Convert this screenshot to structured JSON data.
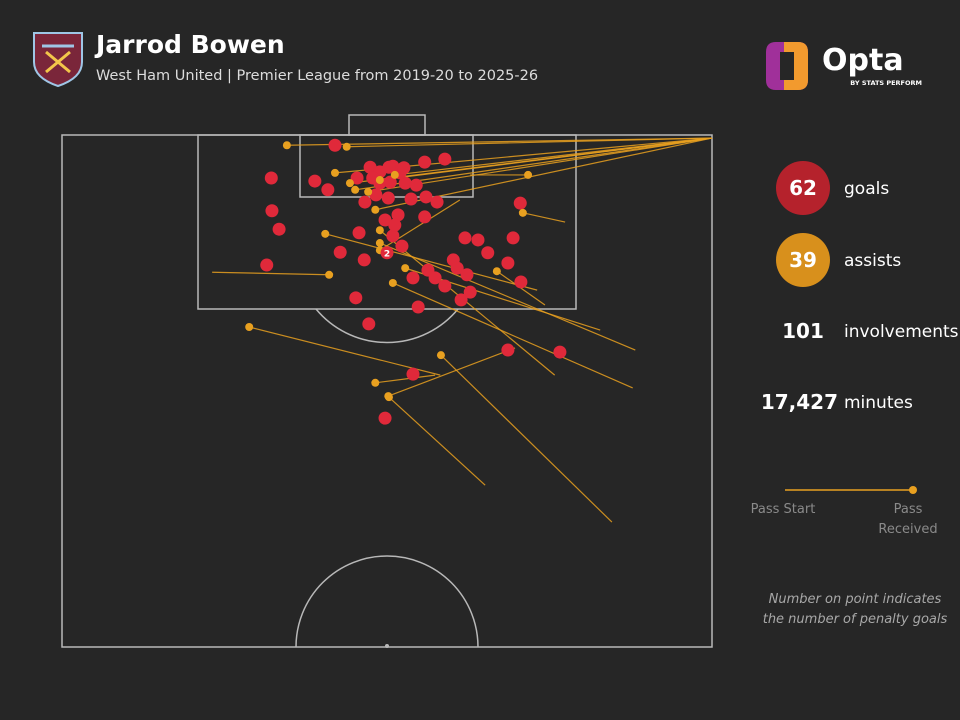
{
  "chart_data": {
    "type": "pitch-map",
    "title": "Jarrod Bowen",
    "subtitle": "West Ham United | Premier League from 2019-20 to 2025-26",
    "brand": "Opta",
    "brand_sub": "BY STATS PERFORM",
    "xlim": [
      0,
      100
    ],
    "ylim": [
      0,
      100
    ],
    "series": [
      {
        "name": "goals",
        "color": "#e0293a",
        "x": [
          42.0,
          32.2,
          38.9,
          40.9,
          32.3,
          33.4,
          31.5,
          47.4,
          50.9,
          55.8,
          58.9,
          45.4,
          48.9,
          52.8,
          54.5,
          50.2,
          53.7,
          56.0,
          57.7,
          46.6,
          51.7,
          49.7,
          55.8,
          70.5,
          45.7,
          42.8,
          46.5,
          50.9,
          52.3,
          62.0,
          64.0,
          69.4,
          65.5,
          68.6,
          60.2,
          60.8,
          56.3,
          54.0,
          62.3,
          58.9,
          62.8,
          61.4,
          70.6,
          45.2,
          54.8,
          47.2,
          68.6,
          76.6,
          54.0,
          49.7,
          50.5,
          52.0,
          48.9,
          48.3,
          51.2,
          57.4,
          50.3,
          47.8,
          52.6
        ],
        "values": [
          2.0,
          8.4,
          9.0,
          10.7,
          14.8,
          18.4,
          25.4,
          6.3,
          6.1,
          5.3,
          4.7,
          8.4,
          9.4,
          9.4,
          9.8,
          12.3,
          12.5,
          12.1,
          13.1,
          13.1,
          15.6,
          16.6,
          16.0,
          13.3,
          19.1,
          22.9,
          24.4,
          19.7,
          21.7,
          20.1,
          20.5,
          20.1,
          23.0,
          25.0,
          24.4,
          26.0,
          26.4,
          27.9,
          27.3,
          29.5,
          30.7,
          32.2,
          28.7,
          31.8,
          33.6,
          36.9,
          42.0,
          42.4,
          46.7,
          55.3,
          9.2,
          7.4,
          7.2,
          11.7,
          17.6,
          27.9,
          6.3,
          8.4,
          6.4
        ]
      },
      {
        "name": "assists",
        "color": "#e8a020",
        "start_x": [
          100,
          100,
          100,
          100,
          100,
          100,
          100,
          100,
          100,
          23.1,
          88.2,
          87.8,
          84.6,
          65.1,
          57.4,
          69.7,
          62.8,
          58.2,
          74.3,
          77.4,
          75.8,
          82.8,
          73.1,
          61.2
        ],
        "start_y": [
          0.6,
          0.6,
          0.6,
          0.6,
          0.6,
          0.6,
          0.6,
          0.6,
          0.6,
          26.8,
          42.0,
          49.4,
          75.6,
          68.4,
          46.9,
          41.6,
          7.8,
          46.9,
          33.2,
          17.0,
          46.9,
          38.1,
          30.3,
          12.7
        ],
        "x": [
          34.6,
          43.8,
          42.0,
          44.3,
          47.1,
          48.9,
          51.2,
          45.1,
          48.2,
          41.1,
          48.9,
          50.9,
          58.3,
          50.3,
          48.2,
          50.2,
          71.7,
          28.8,
          66.9,
          70.9,
          48.9,
          52.8,
          40.5,
          48.9
        ],
        "values": [
          2.0,
          2.3,
          7.4,
          9.4,
          11.1,
          8.8,
          7.8,
          10.7,
          14.6,
          27.3,
          21.1,
          28.9,
          43.0,
          51.2,
          48.4,
          51.0,
          7.8,
          37.5,
          26.6,
          15.2,
          18.6,
          26.0,
          19.3,
          22.5
        ]
      }
    ],
    "penalty": {
      "x": 50.0,
      "y": 23.0,
      "goals": 2
    },
    "stats": [
      {
        "value": 62,
        "label": "goals",
        "color": "#b5222c"
      },
      {
        "value": 39,
        "label": "assists",
        "color": "#d8901c"
      },
      {
        "value": 101,
        "label": "involvements"
      },
      {
        "value": 17427,
        "value_label": "17,427",
        "label": "minutes"
      }
    ],
    "legend": {
      "start": "Pass Start",
      "end": "Pass Received"
    },
    "note": "Number on point indicates the number of penalty goals"
  }
}
